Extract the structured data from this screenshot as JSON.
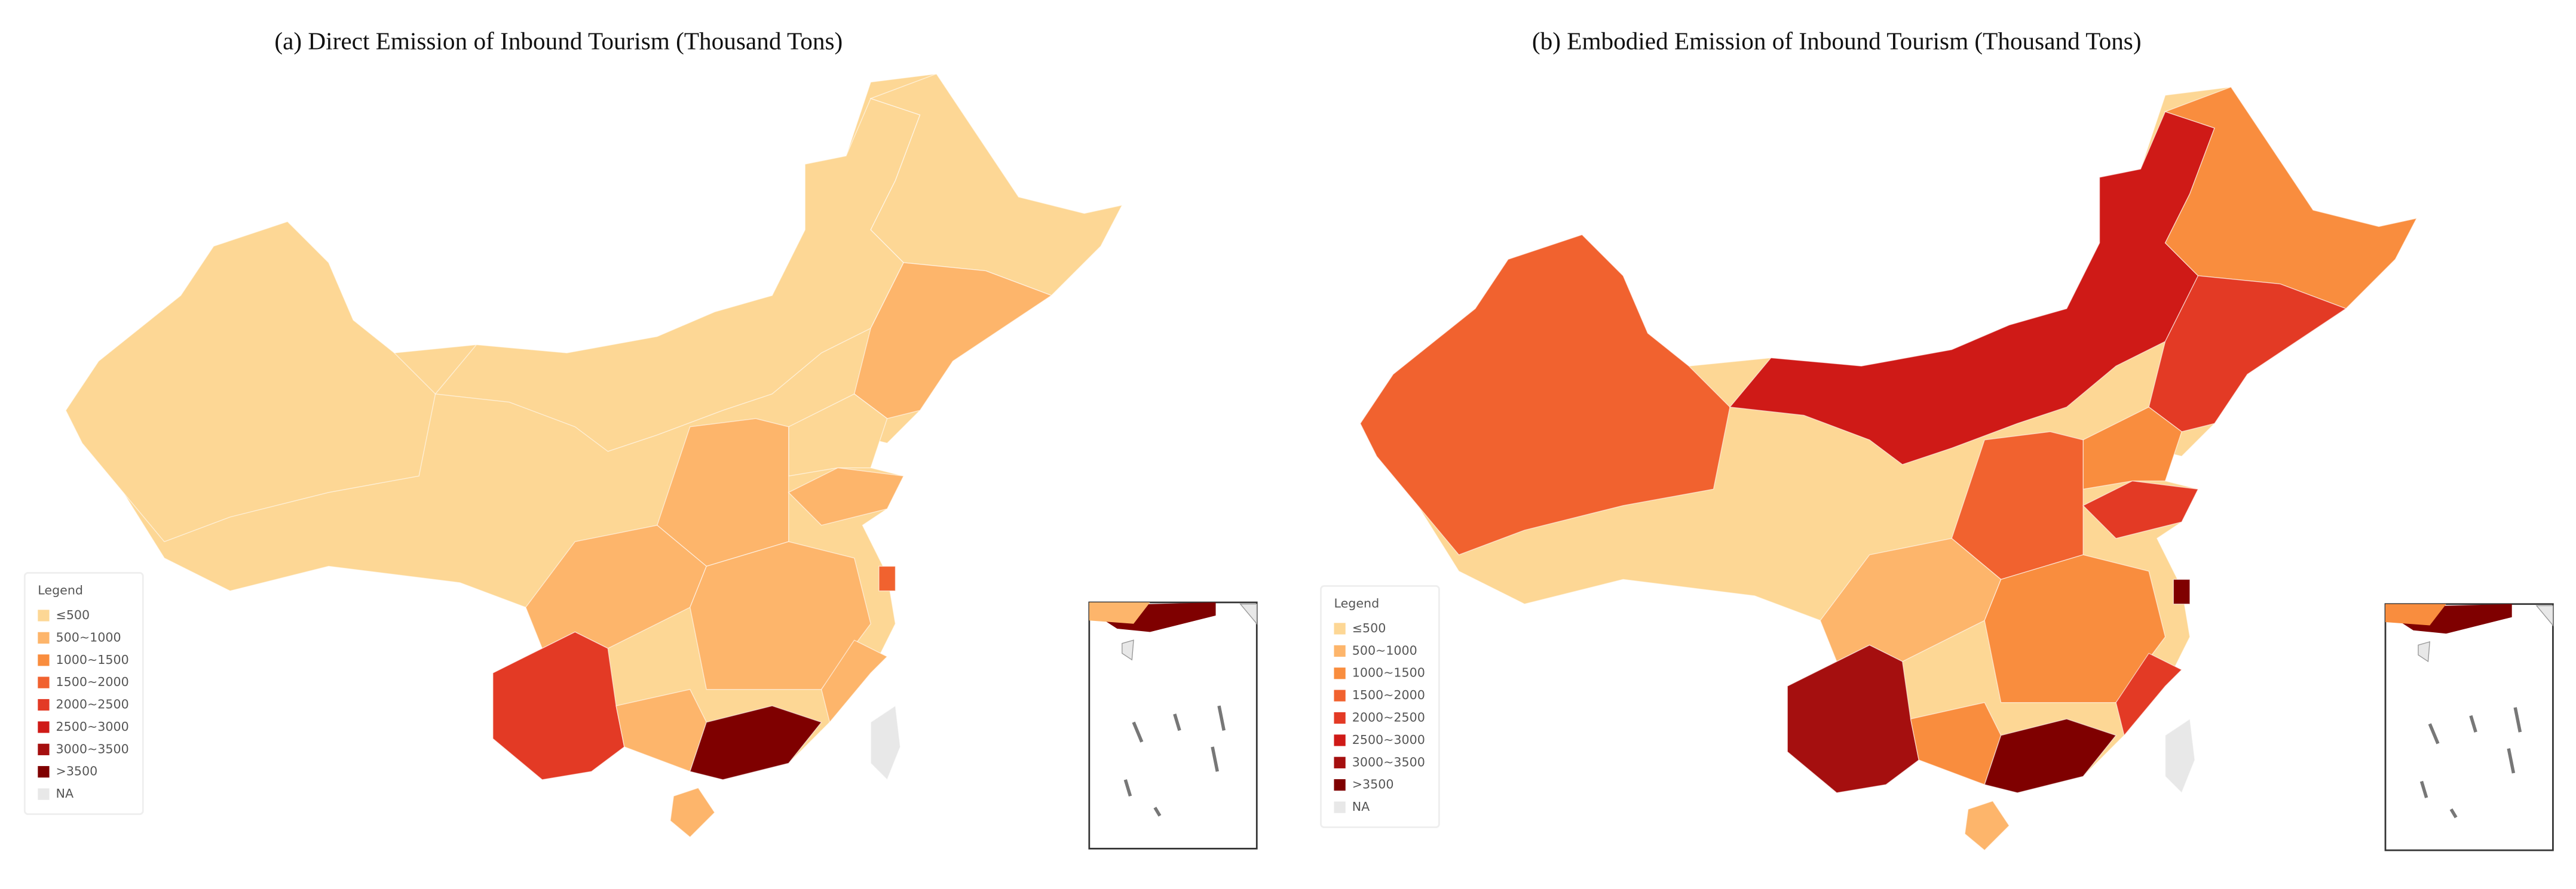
{
  "panels": [
    {
      "title": "(a) Direct Emission of Inbound Tourism (Thousand Tons)",
      "legend": {
        "title": "Legend",
        "items": [
          {
            "label": "≤500",
            "color": "#fdd795"
          },
          {
            "label": "500~1000",
            "color": "#fdb56b"
          },
          {
            "label": "1000~1500",
            "color": "#f98d3e"
          },
          {
            "label": "1500~2000",
            "color": "#f1622f"
          },
          {
            "label": "2000~2500",
            "color": "#e33a25"
          },
          {
            "label": "2500~3000",
            "color": "#cf1a17"
          },
          {
            "label": "3000~3500",
            "color": "#a50f0f"
          },
          {
            "label": ">3500",
            "color": "#7f0000"
          },
          {
            "label": "NA",
            "color": "#e8e8e8"
          }
        ]
      }
    },
    {
      "title": "(b) Embodied Emission of Inbound Tourism (Thousand Tons)",
      "legend": {
        "title": "Legend",
        "items": [
          {
            "label": "≤500",
            "color": "#fdd795"
          },
          {
            "label": "500~1000",
            "color": "#fdb56b"
          },
          {
            "label": "1000~1500",
            "color": "#f98d3e"
          },
          {
            "label": "1500~2000",
            "color": "#f1622f"
          },
          {
            "label": "2000~2500",
            "color": "#e33a25"
          },
          {
            "label": "2500~3000",
            "color": "#cf1a17"
          },
          {
            "label": "3000~3500",
            "color": "#a50f0f"
          },
          {
            "label": ">3500",
            "color": "#7f0000"
          },
          {
            "label": "NA",
            "color": "#e8e8e8"
          }
        ]
      }
    }
  ]
}
